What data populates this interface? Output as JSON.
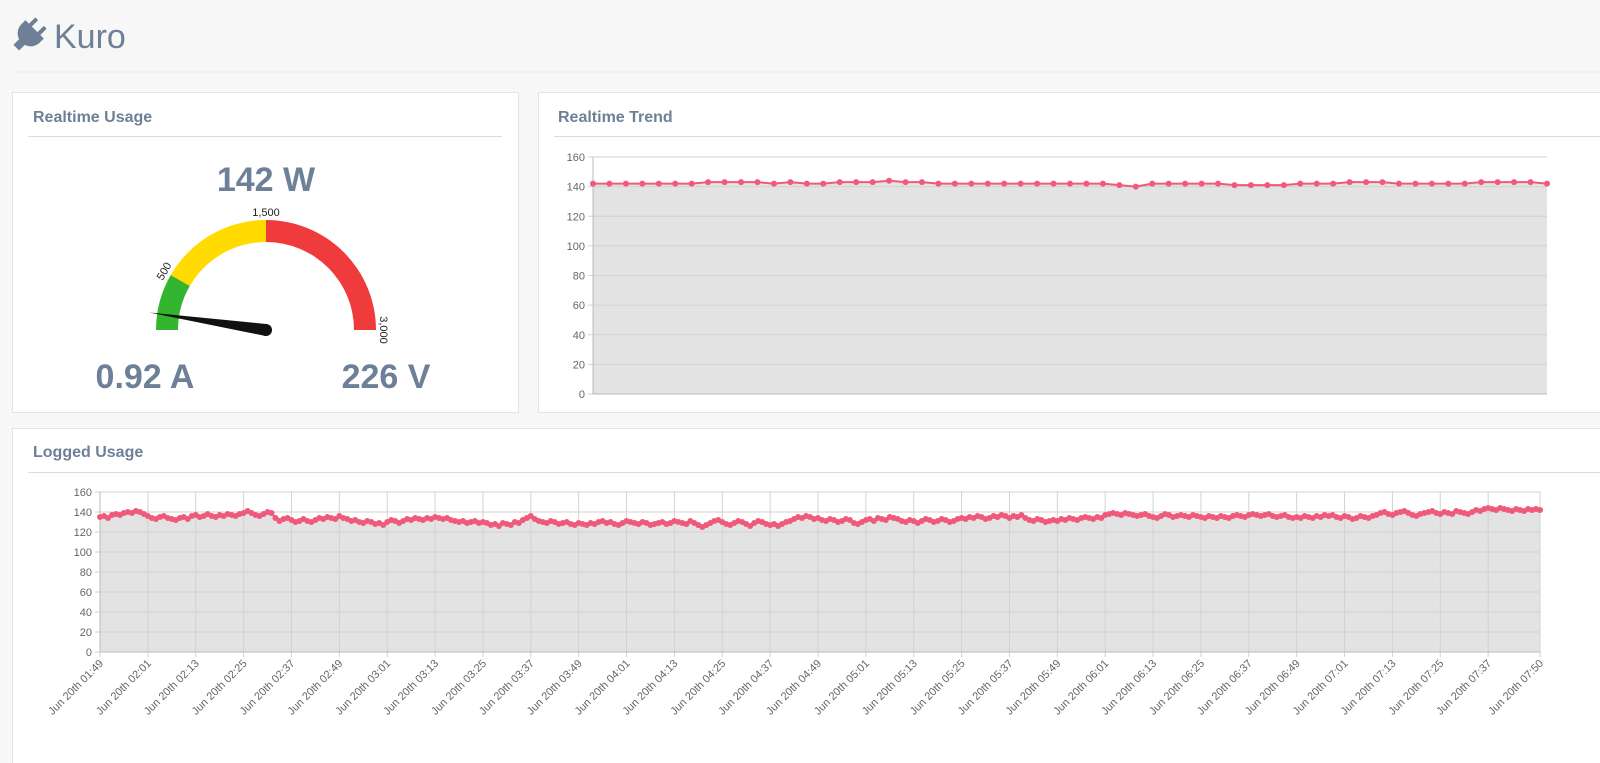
{
  "header": {
    "title": "Kuro"
  },
  "usage": {
    "title": "Realtime Usage",
    "power": {
      "value": 142,
      "label": "142 W"
    },
    "current": "0.92 A",
    "voltage": "226 V",
    "gauge": {
      "type": "gauge",
      "min": 0,
      "max": 3000,
      "bands": [
        {
          "from": 0,
          "to": 500,
          "color": "#34b52f"
        },
        {
          "from": 500,
          "to": 1500,
          "color": "#ffdb00"
        },
        {
          "from": 1500,
          "to": 3000,
          "color": "#ef3b3b"
        }
      ],
      "ticks": [
        500,
        {
          "value": 1500,
          "label": "1,500"
        },
        {
          "value": 3000,
          "label": "3,000"
        }
      ]
    }
  },
  "trend": {
    "title": "Realtime Trend",
    "chart_data": {
      "type": "line",
      "color": "#ef5a7c",
      "fill": "#e3e3e3",
      "grid": true,
      "ylim": [
        0,
        160
      ],
      "yticks": [
        0,
        20,
        40,
        60,
        80,
        100,
        120,
        140,
        160
      ],
      "values": [
        142,
        142,
        142,
        142,
        142,
        142,
        142,
        143,
        143,
        143,
        143,
        142,
        143,
        142,
        142,
        143,
        143,
        143,
        144,
        143,
        143,
        142,
        142,
        142,
        142,
        142,
        142,
        142,
        142,
        142,
        142,
        142,
        141,
        140,
        142,
        142,
        142,
        142,
        142,
        141,
        141,
        141,
        141,
        142,
        142,
        142,
        143,
        143,
        143,
        142,
        142,
        142,
        142,
        142,
        143,
        143,
        143,
        143,
        142
      ]
    }
  },
  "logged": {
    "title": "Logged Usage",
    "chart_data": {
      "type": "line",
      "color": "#ef5a7c",
      "fill": "#e3e3e3",
      "grid": true,
      "ylim": [
        0,
        160
      ],
      "yticks": [
        0,
        20,
        40,
        60,
        80,
        100,
        120,
        140,
        160
      ],
      "categories": [
        "Jun 20th 01:49",
        null,
        null,
        null,
        null,
        null,
        null,
        null,
        null,
        null,
        null,
        null,
        "Jun 20th 02:01",
        null,
        null,
        null,
        null,
        null,
        null,
        null,
        null,
        null,
        null,
        null,
        "Jun 20th 02:13",
        null,
        null,
        null,
        null,
        null,
        null,
        null,
        null,
        null,
        null,
        null,
        "Jun 20th 02:25",
        null,
        null,
        null,
        null,
        null,
        null,
        null,
        null,
        null,
        null,
        null,
        "Jun 20th 02:37",
        null,
        null,
        null,
        null,
        null,
        null,
        null,
        null,
        null,
        null,
        null,
        "Jun 20th 02:49",
        null,
        null,
        null,
        null,
        null,
        null,
        null,
        null,
        null,
        null,
        null,
        "Jun 20th 03:01",
        null,
        null,
        null,
        null,
        null,
        null,
        null,
        null,
        null,
        null,
        null,
        "Jun 20th 03:13",
        null,
        null,
        null,
        null,
        null,
        null,
        null,
        null,
        null,
        null,
        null,
        "Jun 20th 03:25",
        null,
        null,
        null,
        null,
        null,
        null,
        null,
        null,
        null,
        null,
        null,
        "Jun 20th 03:37",
        null,
        null,
        null,
        null,
        null,
        null,
        null,
        null,
        null,
        null,
        null,
        "Jun 20th 03:49",
        null,
        null,
        null,
        null,
        null,
        null,
        null,
        null,
        null,
        null,
        null,
        "Jun 20th 04:01",
        null,
        null,
        null,
        null,
        null,
        null,
        null,
        null,
        null,
        null,
        null,
        "Jun 20th 04:13",
        null,
        null,
        null,
        null,
        null,
        null,
        null,
        null,
        null,
        null,
        null,
        "Jun 20th 04:25",
        null,
        null,
        null,
        null,
        null,
        null,
        null,
        null,
        null,
        null,
        null,
        "Jun 20th 04:37",
        null,
        null,
        null,
        null,
        null,
        null,
        null,
        null,
        null,
        null,
        null,
        "Jun 20th 04:49",
        null,
        null,
        null,
        null,
        null,
        null,
        null,
        null,
        null,
        null,
        null,
        "Jun 20th 05:01",
        null,
        null,
        null,
        null,
        null,
        null,
        null,
        null,
        null,
        null,
        null,
        "Jun 20th 05:13",
        null,
        null,
        null,
        null,
        null,
        null,
        null,
        null,
        null,
        null,
        null,
        "Jun 20th 05:25",
        null,
        null,
        null,
        null,
        null,
        null,
        null,
        null,
        null,
        null,
        null,
        "Jun 20th 05:37",
        null,
        null,
        null,
        null,
        null,
        null,
        null,
        null,
        null,
        null,
        null,
        "Jun 20th 05:49",
        null,
        null,
        null,
        null,
        null,
        null,
        null,
        null,
        null,
        null,
        null,
        "Jun 20th 06:01",
        null,
        null,
        null,
        null,
        null,
        null,
        null,
        null,
        null,
        null,
        null,
        "Jun 20th 06:13",
        null,
        null,
        null,
        null,
        null,
        null,
        null,
        null,
        null,
        null,
        null,
        "Jun 20th 06:25",
        null,
        null,
        null,
        null,
        null,
        null,
        null,
        null,
        null,
        null,
        null,
        "Jun 20th 06:37",
        null,
        null,
        null,
        null,
        null,
        null,
        null,
        null,
        null,
        null,
        null,
        "Jun 20th 06:49",
        null,
        null,
        null,
        null,
        null,
        null,
        null,
        null,
        null,
        null,
        null,
        "Jun 20th 07:01",
        null,
        null,
        null,
        null,
        null,
        null,
        null,
        null,
        null,
        null,
        null,
        "Jun 20th 07:13",
        null,
        null,
        null,
        null,
        null,
        null,
        null,
        null,
        null,
        null,
        null,
        "Jun 20th 07:25",
        null,
        null,
        null,
        null,
        null,
        null,
        null,
        null,
        null,
        null,
        null,
        "Jun 20th 07:37",
        null,
        null,
        null,
        null,
        null,
        null,
        null,
        null,
        null,
        null,
        null,
        null,
        "Jun 20th 07:50"
      ],
      "values": [
        135,
        136,
        134,
        137,
        138,
        137,
        139,
        140,
        139,
        141,
        140,
        138,
        136,
        134,
        133,
        135,
        136,
        134,
        133,
        132,
        134,
        135,
        133,
        136,
        137,
        135,
        136,
        138,
        136,
        135,
        137,
        136,
        138,
        137,
        136,
        138,
        139,
        141,
        139,
        137,
        136,
        138,
        140,
        139,
        134,
        131,
        133,
        134,
        132,
        130,
        131,
        133,
        131,
        130,
        132,
        134,
        133,
        135,
        134,
        133,
        136,
        134,
        133,
        131,
        132,
        130,
        129,
        131,
        130,
        128,
        129,
        127,
        130,
        132,
        131,
        129,
        131,
        133,
        132,
        134,
        133,
        132,
        134,
        133,
        135,
        134,
        133,
        134,
        132,
        131,
        130,
        131,
        129,
        130,
        131,
        129,
        130,
        129,
        127,
        128,
        126,
        129,
        128,
        127,
        130,
        129,
        132,
        134,
        136,
        133,
        131,
        130,
        129,
        131,
        130,
        128,
        129,
        130,
        128,
        127,
        129,
        128,
        127,
        129,
        128,
        130,
        131,
        129,
        130,
        128,
        127,
        129,
        131,
        130,
        129,
        128,
        130,
        129,
        127,
        128,
        129,
        130,
        128,
        129,
        131,
        130,
        129,
        128,
        131,
        129,
        127,
        125,
        127,
        129,
        131,
        132,
        130,
        128,
        127,
        129,
        131,
        130,
        128,
        126,
        129,
        131,
        130,
        128,
        127,
        128,
        126,
        128,
        130,
        131,
        133,
        135,
        134,
        136,
        135,
        133,
        134,
        132,
        131,
        133,
        132,
        130,
        131,
        133,
        132,
        129,
        128,
        130,
        132,
        133,
        131,
        134,
        133,
        132,
        135,
        134,
        133,
        131,
        130,
        132,
        131,
        129,
        131,
        133,
        132,
        130,
        131,
        133,
        132,
        130,
        131,
        133,
        134,
        133,
        135,
        134,
        136,
        135,
        133,
        134,
        136,
        135,
        137,
        136,
        134,
        136,
        135,
        137,
        134,
        132,
        131,
        133,
        132,
        130,
        131,
        132,
        131,
        133,
        132,
        134,
        133,
        132,
        134,
        135,
        134,
        133,
        135,
        134,
        137,
        138,
        139,
        138,
        137,
        139,
        138,
        137,
        136,
        137,
        138,
        136,
        135,
        134,
        136,
        138,
        137,
        135,
        136,
        137,
        136,
        135,
        137,
        136,
        135,
        134,
        136,
        135,
        134,
        136,
        135,
        134,
        136,
        137,
        136,
        135,
        137,
        138,
        137,
        136,
        137,
        138,
        136,
        135,
        136,
        137,
        135,
        134,
        135,
        134,
        136,
        135,
        134,
        136,
        135,
        137,
        136,
        137,
        135,
        134,
        136,
        135,
        133,
        134,
        136,
        135,
        134,
        136,
        137,
        139,
        140,
        138,
        137,
        139,
        140,
        141,
        139,
        137,
        136,
        138,
        139,
        140,
        141,
        139,
        138,
        140,
        139,
        138,
        141,
        140,
        139,
        138,
        140,
        142,
        141,
        143,
        144,
        143,
        142,
        144,
        143,
        142,
        141,
        143,
        142,
        141,
        143,
        142,
        143,
        142
      ]
    }
  }
}
